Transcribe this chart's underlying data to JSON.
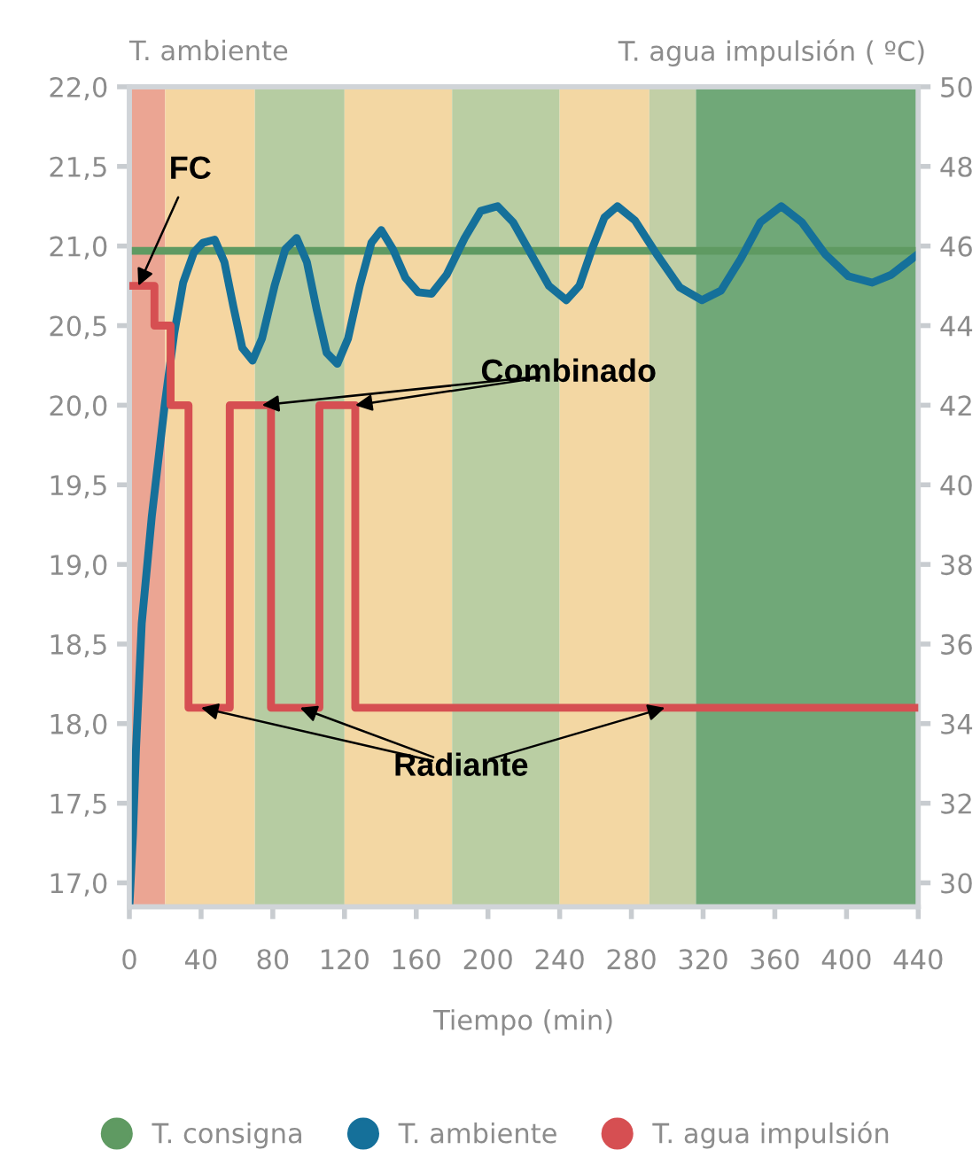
{
  "chart_data": {
    "type": "line",
    "ylabel": "T. ambiente",
    "y2label": "T. agua impulsión ( ºC)",
    "xlabel": "Tiempo (min)",
    "xlim": [
      0,
      440
    ],
    "xticks": [
      0,
      40,
      80,
      120,
      160,
      200,
      240,
      280,
      320,
      360,
      400,
      440
    ],
    "ylim": [
      16.85,
      22.0
    ],
    "yticks": [
      {
        "value": 17.0,
        "label": "17,0"
      },
      {
        "value": 17.5,
        "label": "17,5"
      },
      {
        "value": 18.0,
        "label": "18,0"
      },
      {
        "value": 18.5,
        "label": "18,5"
      },
      {
        "value": 19.0,
        "label": "19,0"
      },
      {
        "value": 19.5,
        "label": "19,5"
      },
      {
        "value": 20.0,
        "label": "20,0"
      },
      {
        "value": 20.5,
        "label": "20,5"
      },
      {
        "value": 21.0,
        "label": "21,0"
      },
      {
        "value": 21.5,
        "label": "21,5"
      },
      {
        "value": 22.0,
        "label": "22,0"
      }
    ],
    "y2lim": [
      29.4,
      50
    ],
    "y2ticks": [
      30,
      32,
      34,
      36,
      38,
      40,
      42,
      44,
      46,
      48,
      50
    ],
    "series": [
      {
        "name": "T. consigna",
        "color": "#5f9a62",
        "x": [
          0,
          440
        ],
        "values": [
          20.97,
          20.97
        ]
      },
      {
        "name": "T. ambiente",
        "color": "#15709a",
        "x": [
          0,
          2,
          3.7,
          6.9,
          12.5,
          19.7,
          25,
          30,
          36,
          41,
          47.6,
          53,
          58,
          63,
          68.7,
          74,
          81,
          87,
          93.3,
          99,
          104.5,
          110,
          116,
          122,
          128.5,
          135,
          140.5,
          147,
          154,
          161,
          168.6,
          177,
          187,
          196,
          205.4,
          214,
          224,
          234,
          243.7,
          251,
          258,
          265,
          272.2,
          282,
          294,
          307,
          319.4,
          330,
          341,
          352,
          363.6,
          375,
          388,
          401,
          414.3,
          425,
          433,
          440
        ],
        "values": [
          16.85,
          17.3,
          17.84,
          18.63,
          19.3,
          20.0,
          20.45,
          20.77,
          20.96,
          21.02,
          21.04,
          20.9,
          20.62,
          20.36,
          20.28,
          20.42,
          20.75,
          20.98,
          21.05,
          20.9,
          20.6,
          20.33,
          20.26,
          20.42,
          20.75,
          21.02,
          21.1,
          20.98,
          20.8,
          20.71,
          20.7,
          20.82,
          21.05,
          21.22,
          21.25,
          21.15,
          20.95,
          20.75,
          20.66,
          20.75,
          20.98,
          21.18,
          21.25,
          21.16,
          20.95,
          20.74,
          20.66,
          20.72,
          20.92,
          21.15,
          21.25,
          21.15,
          20.95,
          20.81,
          20.77,
          20.82,
          20.89,
          20.95
        ]
      },
      {
        "name": "T. agua impulsión",
        "type": "step",
        "axis": "y2",
        "color": "#d64f52",
        "x": [
          0,
          14,
          23,
          33,
          56,
          79,
          106,
          126,
          440
        ],
        "values": [
          45,
          44,
          42,
          34.4,
          42,
          34.4,
          42,
          34.4,
          34.4
        ]
      }
    ],
    "bands": [
      {
        "axis": "x",
        "from": 0,
        "to": 20,
        "color": "#eba593"
      },
      {
        "axis": "x",
        "from": 20,
        "to": 70,
        "color": "#f5d6a1"
      },
      {
        "axis": "x",
        "from": 70,
        "to": 120,
        "color": "#b6cca2"
      },
      {
        "axis": "x",
        "from": 120,
        "to": 180,
        "color": "#f3d7a3"
      },
      {
        "axis": "x",
        "from": 180,
        "to": 240,
        "color": "#bacea3"
      },
      {
        "axis": "x",
        "from": 240,
        "to": 290,
        "color": "#f3d7a3"
      },
      {
        "axis": "x",
        "from": 290,
        "to": 316,
        "color": "#c2cfa6"
      },
      {
        "axis": "x",
        "from": 316,
        "to": 440,
        "color": "#70a878"
      }
    ],
    "annotations": [
      {
        "text": "FC",
        "x": 5,
        "y": 20.75
      },
      {
        "text": "Combinado",
        "x": 74,
        "y": 20.0
      },
      {
        "text": "Radiante",
        "x": 40,
        "y": 18.1
      }
    ],
    "legend": "bottom",
    "grid": false
  }
}
